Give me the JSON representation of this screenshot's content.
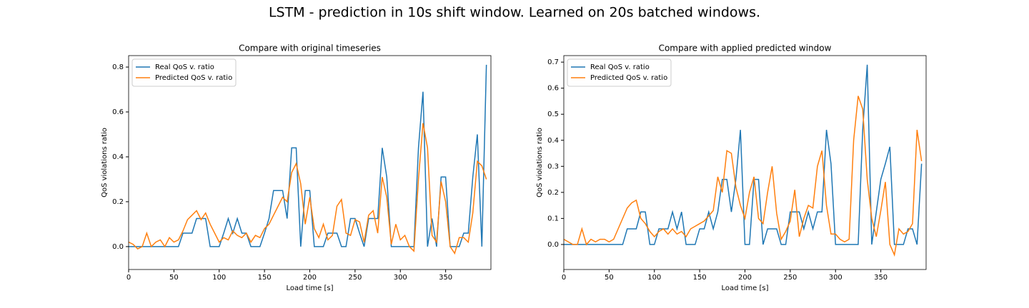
{
  "title": "LSTM - prediction in 10s shift window. Learned on 20s batched windows.",
  "chart_data": [
    {
      "type": "line",
      "title": "Compare with original timeseries",
      "xlabel": "Load time [s]",
      "ylabel": "QoS violations ratio",
      "xlim": [
        0,
        400
      ],
      "ylim": [
        -0.102,
        0.851
      ],
      "xticks": [
        0,
        50,
        100,
        150,
        200,
        250,
        300,
        350
      ],
      "yticks": [
        {
          "value": 0,
          "label": "0.0"
        },
        0.2,
        0.4,
        0.6,
        0.8
      ],
      "legend": "upper left",
      "x": [
        0,
        5,
        10,
        15,
        20,
        25,
        30,
        35,
        40,
        45,
        50,
        55,
        60,
        65,
        70,
        75,
        80,
        85,
        90,
        95,
        100,
        105,
        110,
        115,
        120,
        125,
        130,
        135,
        140,
        145,
        150,
        155,
        160,
        165,
        170,
        175,
        180,
        185,
        190,
        195,
        200,
        205,
        210,
        215,
        220,
        225,
        230,
        235,
        240,
        245,
        250,
        255,
        260,
        265,
        270,
        275,
        280,
        285,
        290,
        295,
        300,
        305,
        310,
        315,
        320,
        325,
        330,
        335,
        340,
        345,
        350,
        355,
        360,
        365,
        370,
        375,
        380,
        385,
        390,
        395
      ],
      "series": [
        {
          "name": "Real QoS v. ratio",
          "color": "#1f77b4",
          "values": [
            0,
            0,
            0,
            0,
            0,
            0,
            0,
            0,
            0,
            0,
            0,
            0,
            0.06,
            0.06,
            0.06,
            0.125,
            0.125,
            0.125,
            0,
            0,
            0,
            0.06,
            0.125,
            0.06,
            0.125,
            0.06,
            0.06,
            0,
            0,
            0,
            0.06,
            0.125,
            0.25,
            0.25,
            0.25,
            0.125,
            0.44,
            0.44,
            0,
            0.25,
            0.25,
            0,
            0,
            0,
            0.06,
            0.06,
            0.06,
            0,
            0,
            0.125,
            0.125,
            0.06,
            0,
            0.125,
            0.125,
            0.125,
            0.44,
            0.31,
            0,
            0,
            0,
            0,
            0,
            0,
            0.44,
            0.69,
            0,
            0.125,
            0,
            0.31,
            0.31,
            0,
            0,
            0,
            0.06,
            0.06,
            0.31,
            0.5,
            0,
            0.81
          ]
        },
        {
          "name": "Predicted QoS v. ratio",
          "color": "#ff7f0e",
          "values": [
            0.02,
            0.01,
            -0.01,
            0,
            0.06,
            0,
            0.02,
            0.03,
            0,
            0.04,
            0.02,
            0.03,
            0.07,
            0.12,
            0.14,
            0.16,
            0.12,
            0.15,
            0.1,
            0.06,
            0.02,
            0.04,
            0.03,
            0.07,
            0.05,
            0.04,
            0.06,
            0.02,
            0.05,
            0.04,
            0.08,
            0.1,
            0.14,
            0.18,
            0.22,
            0.2,
            0.33,
            0.37,
            0.28,
            0.1,
            0.22,
            0.08,
            0.04,
            0.1,
            0.03,
            0.05,
            0.18,
            0.21,
            0.06,
            0.05,
            0.12,
            0.11,
            0.02,
            0.14,
            0.16,
            0.06,
            0.31,
            0.22,
            0.01,
            0.1,
            0.03,
            0.05,
            0,
            -0.02,
            0.3,
            0.55,
            0.44,
            0.05,
            0.02,
            0.29,
            0.2,
            0,
            -0.03,
            0.04,
            0.04,
            0.02,
            0.15,
            0.38,
            0.36,
            0.3
          ]
        }
      ]
    },
    {
      "type": "line",
      "title": "Compare with applied predicted window",
      "xlabel": "Load time [s]",
      "ylabel": "QoS violations ratio",
      "xlim": [
        0,
        400
      ],
      "ylim": [
        -0.096,
        0.725
      ],
      "xticks": [
        0,
        50,
        100,
        150,
        200,
        250,
        300,
        350
      ],
      "yticks": [
        {
          "value": 0,
          "label": "0.0"
        },
        0.1,
        0.2,
        0.3,
        0.4,
        0.5,
        0.6,
        0.7
      ],
      "legend": "upper left",
      "x": [
        0,
        5,
        10,
        15,
        20,
        25,
        30,
        35,
        40,
        45,
        50,
        55,
        60,
        65,
        70,
        75,
        80,
        85,
        90,
        95,
        100,
        105,
        110,
        115,
        120,
        125,
        130,
        135,
        140,
        145,
        150,
        155,
        160,
        165,
        170,
        175,
        180,
        185,
        190,
        195,
        200,
        205,
        210,
        215,
        220,
        225,
        230,
        235,
        240,
        245,
        250,
        255,
        260,
        265,
        270,
        275,
        280,
        285,
        290,
        295,
        300,
        305,
        310,
        315,
        320,
        325,
        330,
        335,
        340,
        345,
        350,
        355,
        360,
        365,
        370,
        375,
        380,
        385,
        390,
        395
      ],
      "series": [
        {
          "name": "Real QoS v. ratio",
          "color": "#1f77b4",
          "values": [
            0,
            0,
            0,
            0,
            0,
            0,
            0,
            0,
            0,
            0,
            0,
            0,
            0,
            0,
            0.06,
            0.06,
            0.06,
            0.125,
            0.125,
            0,
            0,
            0.06,
            0.06,
            0.06,
            0.125,
            0.06,
            0.125,
            0,
            0,
            0,
            0.06,
            0.06,
            0.125,
            0.06,
            0.125,
            0.25,
            0.25,
            0.125,
            0.25,
            0.44,
            0,
            0,
            0.25,
            0.25,
            0,
            0.06,
            0.06,
            0.06,
            0,
            0,
            0.125,
            0.125,
            0.125,
            0.06,
            0.125,
            0.06,
            0.125,
            0.125,
            0.44,
            0.31,
            0,
            0,
            0,
            0,
            0,
            0,
            0.44,
            0.69,
            0,
            0.125,
            0.25,
            0.31,
            0.375,
            0,
            0,
            0,
            0.06,
            0.06,
            0,
            0.31
          ]
        },
        {
          "name": "Predicted QoS v. ratio",
          "color": "#ff7f0e",
          "values": [
            0.02,
            0.01,
            0,
            0,
            0.06,
            0,
            0.02,
            0.01,
            0.02,
            0.02,
            0.01,
            0.02,
            0.06,
            0.1,
            0.14,
            0.16,
            0.17,
            0.1,
            0.08,
            0.05,
            0.03,
            0.05,
            0.06,
            0.04,
            0.06,
            0.04,
            0.05,
            0.03,
            0.06,
            0.07,
            0.08,
            0.09,
            0.11,
            0.13,
            0.26,
            0.2,
            0.36,
            0.35,
            0.22,
            0.15,
            0.1,
            0.2,
            0.26,
            0.1,
            0.08,
            0.2,
            0.3,
            0.12,
            0.02,
            0.05,
            0.09,
            0.21,
            0.03,
            0.1,
            0.15,
            0.14,
            0.3,
            0.36,
            0.15,
            0.04,
            0.04,
            0.02,
            0.01,
            0.02,
            0.4,
            0.57,
            0.52,
            0.25,
            0.1,
            0.03,
            0.13,
            0.24,
            0,
            -0.04,
            0.06,
            0.04,
            0.05,
            0.08,
            0.44,
            0.32
          ]
        }
      ]
    }
  ]
}
